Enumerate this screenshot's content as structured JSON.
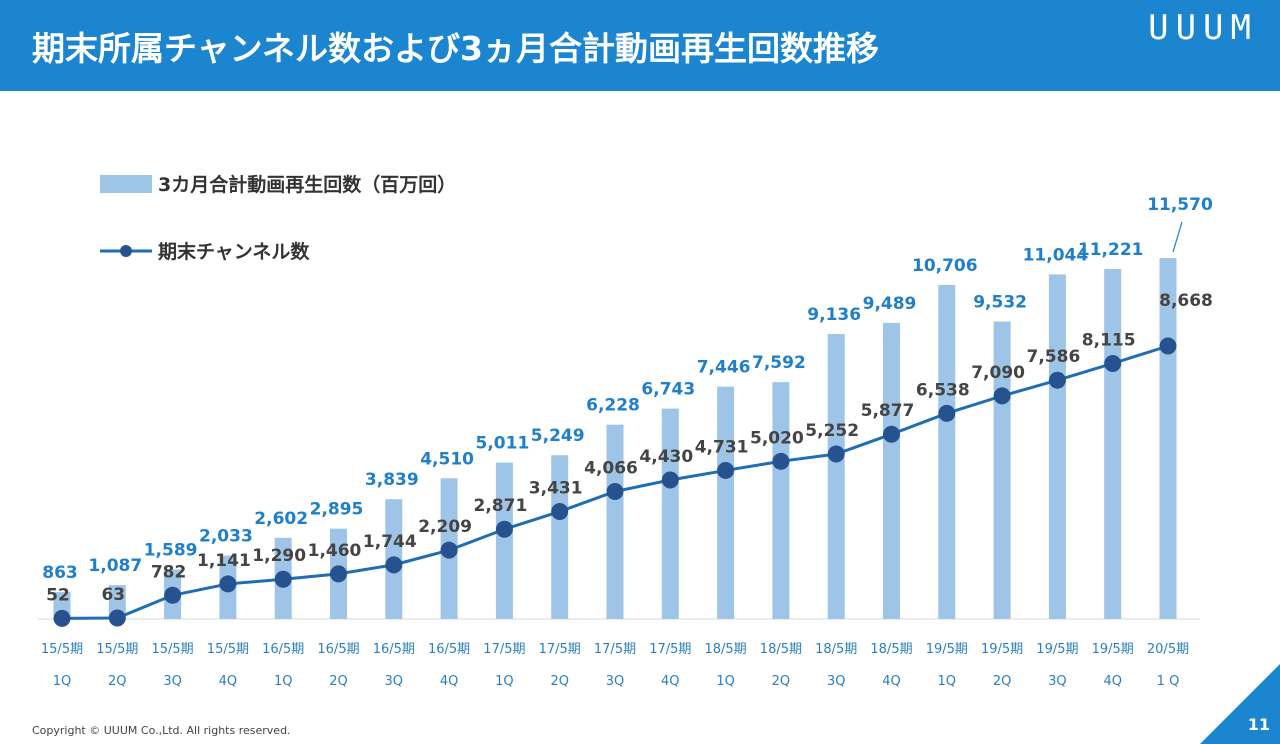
{
  "header": {
    "title": "期末所属チャンネル数および3ヵ月合計動画再生回数推移",
    "logo": "UUUM"
  },
  "footer": {
    "copyright": "Copyright © UUUM Co.,Ltd. All rights reserved.",
    "page_number": "11"
  },
  "colors": {
    "header_bg": "#1b86cf",
    "bar": "#9ec5e8",
    "line": "#1f6db5",
    "marker": "#26538f",
    "bar_label": "#1f7fcb",
    "line_label": "#444444"
  },
  "chart_data": {
    "type": "bar+line",
    "categories": [
      [
        "15/5期",
        "1Q"
      ],
      [
        "15/5期",
        "2Q"
      ],
      [
        "15/5期",
        "3Q"
      ],
      [
        "15/5期",
        "4Q"
      ],
      [
        "16/5期",
        "1Q"
      ],
      [
        "16/5期",
        "2Q"
      ],
      [
        "16/5期",
        "3Q"
      ],
      [
        "16/5期",
        "4Q"
      ],
      [
        "17/5期",
        "1Q"
      ],
      [
        "17/5期",
        "2Q"
      ],
      [
        "17/5期",
        "3Q"
      ],
      [
        "17/5期",
        "4Q"
      ],
      [
        "18/5期",
        "1Q"
      ],
      [
        "18/5期",
        "2Q"
      ],
      [
        "18/5期",
        "3Q"
      ],
      [
        "18/5期",
        "4Q"
      ],
      [
        "19/5期",
        "1Q"
      ],
      [
        "19/5期",
        "2Q"
      ],
      [
        "19/5期",
        "3Q"
      ],
      [
        "19/5期",
        "4Q"
      ],
      [
        "20/5期",
        "1 Q"
      ]
    ],
    "series": [
      {
        "name": "3カ月合計動画再生回数（百万回）",
        "type": "bar",
        "values": [
          863,
          1087,
          1589,
          2033,
          2602,
          2895,
          3839,
          4510,
          5011,
          5249,
          6228,
          6743,
          7446,
          7592,
          9136,
          9489,
          10706,
          9532,
          11044,
          11221,
          11570
        ],
        "labels": [
          "863",
          "1,087",
          "1,589",
          "2,033",
          "2,602",
          "2,895",
          "3,839",
          "4,510",
          "5,011",
          "5,249",
          "6,228",
          "6,743",
          "7,446",
          "7,592",
          "9,136",
          "9,489",
          "10,706",
          "9,532",
          "11,044",
          "11,221",
          "11,570"
        ]
      },
      {
        "name": "期末チャンネル数",
        "type": "line",
        "values": [
          52,
          63,
          782,
          1141,
          1290,
          1460,
          1744,
          2209,
          2871,
          3431,
          4066,
          4430,
          4731,
          5020,
          5252,
          5877,
          6538,
          7090,
          7586,
          8115,
          8668
        ],
        "labels": [
          "52",
          "63",
          "782",
          "1,141",
          "1,290",
          "1,460",
          "1,744",
          "2,209",
          "2,871",
          "3,431",
          "4,066",
          "4,430",
          "4,731",
          "5,020",
          "5,252",
          "5,877",
          "6,538",
          "7,090",
          "7,586",
          "8,115",
          "8,668"
        ]
      }
    ],
    "legend": [
      "3カ月合計動画再生回数（百万回）",
      "期末チャンネル数"
    ],
    "grid": false
  }
}
